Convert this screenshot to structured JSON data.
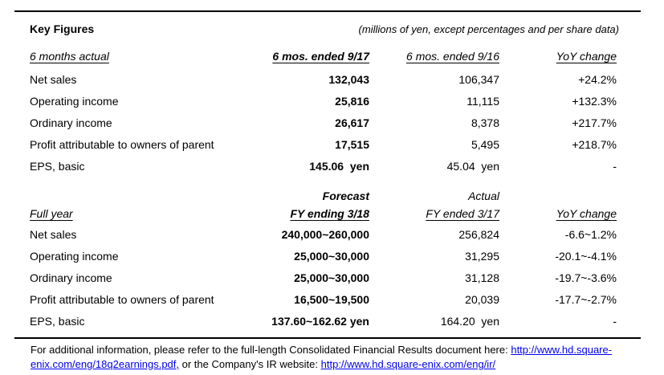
{
  "page": {
    "title": "Key Figures",
    "unit_note": "(millions of yen, except percentages and per share data)"
  },
  "table1": {
    "section_label": "6 months actual",
    "col1_header": "6 mos. ended 9/17",
    "col2_header": "6 mos. ended 9/16",
    "col3_header": "YoY change",
    "rows": [
      {
        "label": "Net sales",
        "current": "132,043",
        "prior": "106,347",
        "yoy": "+24.2%"
      },
      {
        "label": "Operating income",
        "current": "25,816",
        "prior": "11,115",
        "yoy": "+132.3%"
      },
      {
        "label": "Ordinary income",
        "current": "26,617",
        "prior": "8,378",
        "yoy": "+217.7%"
      },
      {
        "label": "Profit attributable to owners of parent",
        "current": "17,515",
        "prior": "5,495",
        "yoy": "+218.7%"
      },
      {
        "label": "EPS, basic",
        "current": "145.06  yen",
        "prior": "45.04  yen",
        "yoy": "-"
      }
    ]
  },
  "table2": {
    "section_label": "Full year",
    "col1_preheader": "Forecast",
    "col2_preheader": "Actual",
    "col1_header": "FY ending 3/18",
    "col2_header": "FY ended 3/17",
    "col3_header": "YoY change",
    "rows": [
      {
        "label": "Net sales",
        "forecast": "240,000~260,000",
        "actual": "256,824",
        "yoy": "-6.6~1.2%"
      },
      {
        "label": "Operating income",
        "forecast": "25,000~30,000",
        "actual": "31,295",
        "yoy": "-20.1~-4.1%"
      },
      {
        "label": "Ordinary income",
        "forecast": "25,000~30,000",
        "actual": "31,128",
        "yoy": "-19.7~-3.6%"
      },
      {
        "label": "Profit attributable to owners of parent",
        "forecast": "16,500~19,500",
        "actual": "20,039",
        "yoy": "-17.7~-2.7%"
      },
      {
        "label": "EPS, basic",
        "forecast": "137.60~162.62 yen",
        "actual": "164.20  yen",
        "yoy": "-"
      }
    ]
  },
  "footer": {
    "line1_text": "For additional information, please refer to the full-length Consolidated Financial Results document here: ",
    "line1_link": "http://www.hd.square-",
    "line2_link": "enix.com/eng/18q2earnings.pdf,",
    "line2_text": " or the Company's IR website: ",
    "line2_link2": "http://www.hd.square-enix.com/eng/ir/",
    "link_color": "#0000EE"
  }
}
